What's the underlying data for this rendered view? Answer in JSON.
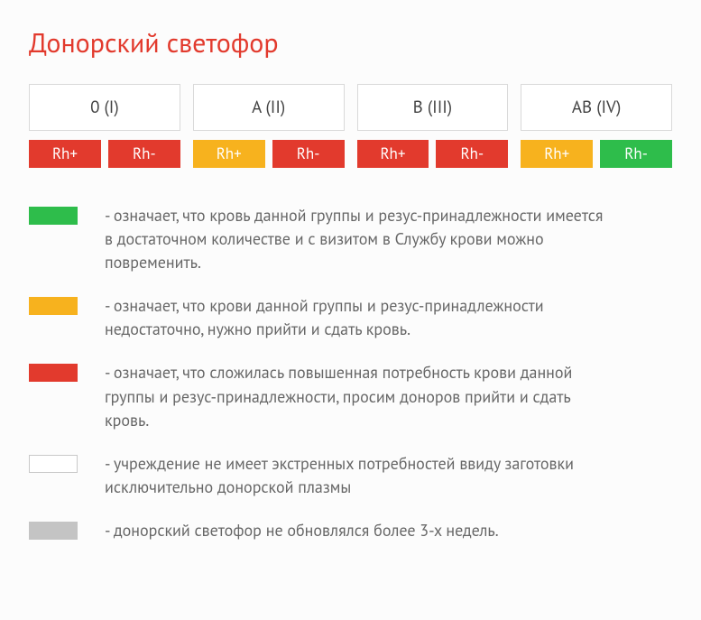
{
  "title": "Донорский светофор",
  "colors": {
    "red": "#e23a2d",
    "orange": "#f7b21e",
    "green": "#2ebd4b",
    "white": "#ffffff",
    "grey": "#c4c4c4",
    "outline": "#c9c9c9"
  },
  "groups": [
    {
      "label": "0 (I)",
      "rhp_label": "Rh+",
      "rhp_color": "#e23a2d",
      "rhn_label": "Rh-",
      "rhn_color": "#e23a2d"
    },
    {
      "label": "A (II)",
      "rhp_label": "Rh+",
      "rhp_color": "#f7b21e",
      "rhn_label": "Rh-",
      "rhn_color": "#e23a2d"
    },
    {
      "label": "B (III)",
      "rhp_label": "Rh+",
      "rhp_color": "#e23a2d",
      "rhn_label": "Rh-",
      "rhn_color": "#e23a2d"
    },
    {
      "label": "AB (IV)",
      "rhp_label": "Rh+",
      "rhp_color": "#f7b21e",
      "rhn_label": "Rh-",
      "rhn_color": "#2ebd4b"
    }
  ],
  "legend": [
    {
      "color": "#2ebd4b",
      "outline": false,
      "text": "- означает, что кровь данной группы и резус-принадлежности имеется в достаточном количестве и с визитом в Службу крови можно повременить."
    },
    {
      "color": "#f7b21e",
      "outline": false,
      "text": "- означает, что крови данной группы и резус-принадлежности недостаточно, нужно прийти и сдать кровь."
    },
    {
      "color": "#e23a2d",
      "outline": false,
      "text": "- означает, что сложилась повышенная потребность крови данной группы и резус-принадлежности, просим доноров прийти и сдать кровь."
    },
    {
      "color": "#ffffff",
      "outline": true,
      "text": "- учреждение не имеет экстренных потребностей ввиду заготовки исключительно донорской плазмы"
    },
    {
      "color": "#c4c4c4",
      "outline": false,
      "text": "- донорский светофор не обновлялся более 3-х недель."
    }
  ]
}
